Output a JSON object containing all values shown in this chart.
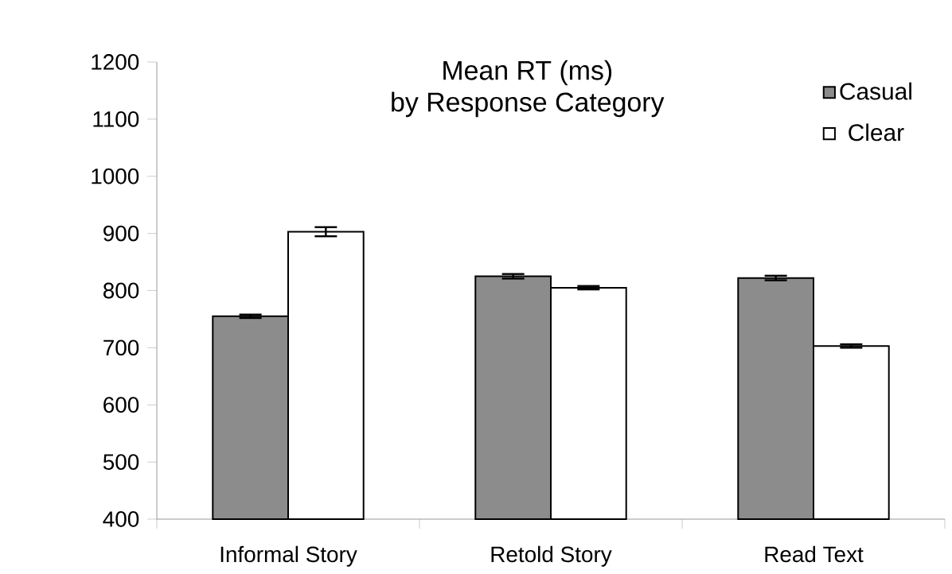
{
  "chart_data": {
    "type": "bar",
    "title": "Mean RT (ms)\nby Response Category",
    "categories": [
      "Informal Story",
      "Retold Story",
      "Read Text"
    ],
    "series": [
      {
        "name": "Casual",
        "color": "#8c8c8c",
        "values": [
          755,
          825,
          822
        ],
        "errors": [
          3,
          4,
          4
        ]
      },
      {
        "name": "Clear",
        "color": "#ffffff",
        "values": [
          903,
          805,
          703
        ],
        "errors": [
          8,
          3,
          3
        ]
      }
    ],
    "ylim": [
      400,
      1200
    ],
    "yticks": [
      400,
      500,
      600,
      700,
      800,
      900,
      1000,
      1100,
      1200
    ],
    "grid": false,
    "legend": "top right"
  }
}
